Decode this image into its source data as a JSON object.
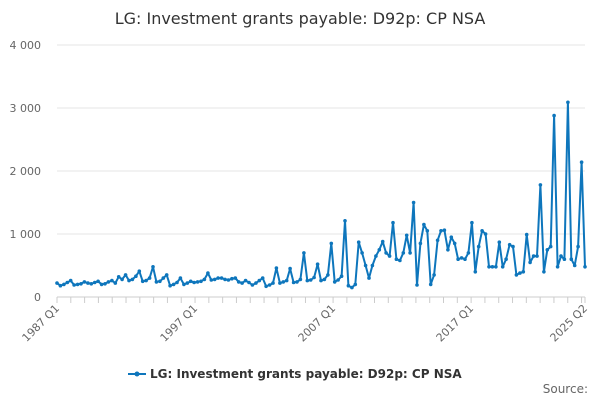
{
  "chart_data": {
    "type": "line",
    "title": "LG: Investment grants payable: D92p: CP NSA",
    "xlabel": "",
    "ylabel": "",
    "ylim": [
      0,
      4000
    ],
    "yticks": [
      0,
      1000,
      2000,
      3000,
      4000
    ],
    "ytick_labels": [
      "0",
      "1 000",
      "2 000",
      "3 000",
      "4 000"
    ],
    "xtick_labels": [
      "1987 Q1",
      "1997 Q1",
      "2007 Q1",
      "2017 Q1",
      "2025 Q2"
    ],
    "x_start": "1987 Q1",
    "x_end": "2025 Q2",
    "grid": "horizontal",
    "legend_position": "bottom",
    "series": [
      {
        "name": "LG: Investment grants payable: D92p: CP NSA",
        "color": "#0e76bc",
        "values": [
          220,
          180,
          200,
          230,
          260,
          190,
          200,
          210,
          240,
          220,
          210,
          230,
          250,
          200,
          210,
          240,
          260,
          220,
          320,
          280,
          350,
          260,
          280,
          330,
          410,
          250,
          260,
          300,
          480,
          240,
          250,
          300,
          350,
          180,
          200,
          230,
          300,
          200,
          220,
          250,
          230,
          240,
          250,
          280,
          380,
          270,
          280,
          300,
          300,
          280,
          270,
          290,
          300,
          240,
          220,
          260,
          230,
          190,
          220,
          260,
          300,
          170,
          190,
          220,
          460,
          220,
          240,
          260,
          450,
          230,
          240,
          280,
          700,
          260,
          270,
          310,
          520,
          260,
          280,
          350,
          850,
          240,
          270,
          330,
          1210,
          180,
          150,
          200,
          870,
          700,
          500,
          300,
          500,
          650,
          750,
          880,
          700,
          650,
          1180,
          600,
          580,
          700,
          980,
          700,
          1500,
          190,
          850,
          1150,
          1050,
          200,
          350,
          900,
          1050,
          1060,
          750,
          950,
          850,
          600,
          620,
          600,
          700,
          1180,
          400,
          800,
          1050,
          1000,
          480,
          480,
          480,
          870,
          480,
          600,
          830,
          800,
          350,
          380,
          400,
          990,
          550,
          650,
          650,
          1780,
          400,
          750,
          800,
          2880,
          480,
          650,
          600,
          3090,
          600,
          500,
          800,
          2140,
          480
        ]
      }
    ],
    "legend_label": "LG: Investment grants payable: D92p: CP NSA",
    "source_label": "Source:"
  }
}
